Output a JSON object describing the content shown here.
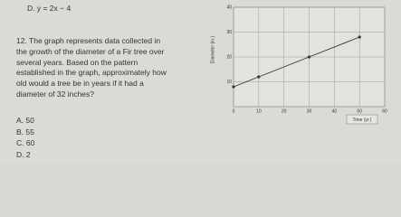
{
  "question": {
    "previous_option": "D. y = 2x − 4",
    "lines": [
      "12. The graph represents data collected in",
      "the growth of the diameter of a Fir tree over",
      "several years.  Based on the pattern",
      "established in the graph, approximately how",
      "old would a tree be in years if it had a",
      "diameter of 32 inches?"
    ],
    "options": [
      "A. 50",
      "B. 55",
      "C. 60",
      "D. 2"
    ]
  },
  "chart_data": {
    "type": "line",
    "y_label": "Diameter (in.)",
    "x_label": "Time (yr.)",
    "x": [
      0,
      10,
      30,
      50
    ],
    "series": [
      {
        "values": [
          8,
          12,
          20,
          28
        ],
        "color": "#333333"
      }
    ],
    "xlim": [
      0,
      60
    ],
    "ylim": [
      0,
      40
    ],
    "xticks": [
      0,
      10,
      20,
      30,
      40,
      50,
      60
    ],
    "yticks": [
      10,
      20,
      30,
      40
    ],
    "grid": true
  }
}
